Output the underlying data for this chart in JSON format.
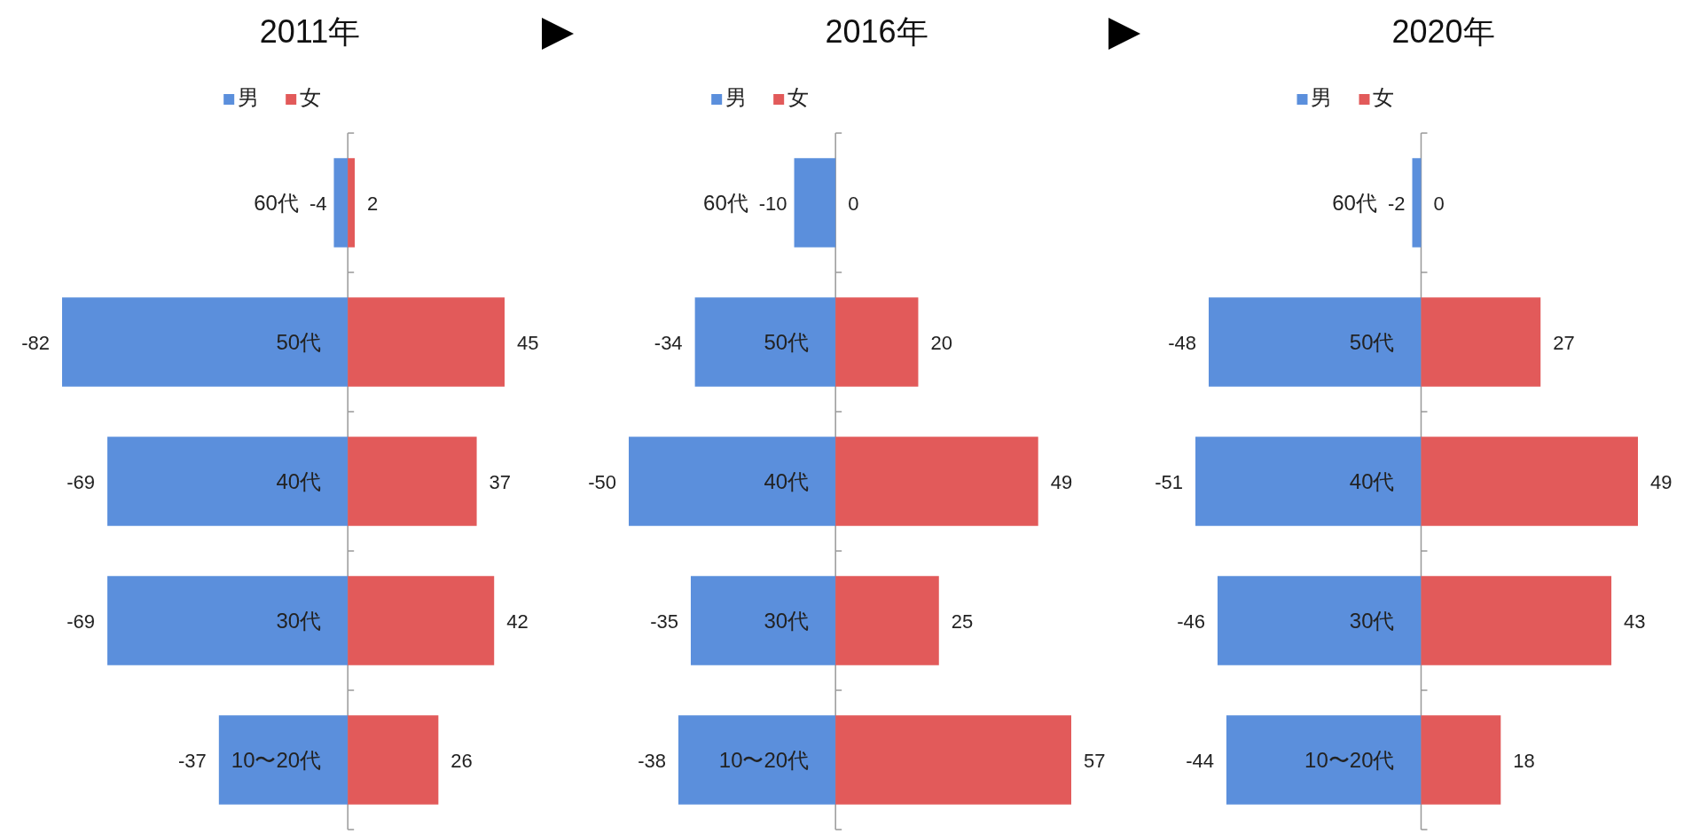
{
  "chart_data": [
    {
      "type": "bar",
      "orientation": "horizontal",
      "stacked": true,
      "title": "2011年",
      "categories": [
        "60代",
        "50代",
        "40代",
        "30代",
        "10〜20代"
      ],
      "legend": "top",
      "data_labels": true,
      "series": [
        {
          "name": "男",
          "color": "#5b8fdc",
          "values": [
            -4,
            -82,
            -69,
            -69,
            -37
          ]
        },
        {
          "name": "女",
          "color": "#e25a5a",
          "values": [
            2,
            45,
            37,
            42,
            26
          ]
        }
      ]
    },
    {
      "type": "bar",
      "orientation": "horizontal",
      "stacked": true,
      "title": "2016年",
      "categories": [
        "60代",
        "50代",
        "40代",
        "30代",
        "10〜20代"
      ],
      "legend": "top",
      "data_labels": true,
      "series": [
        {
          "name": "男",
          "color": "#5b8fdc",
          "values": [
            -10,
            -34,
            -50,
            -35,
            -38
          ]
        },
        {
          "name": "女",
          "color": "#e25a5a",
          "values": [
            0,
            20,
            49,
            25,
            57
          ]
        }
      ]
    },
    {
      "type": "bar",
      "orientation": "horizontal",
      "stacked": true,
      "title": "2020年",
      "categories": [
        "60代",
        "50代",
        "40代",
        "30代",
        "10〜20代"
      ],
      "legend": "top",
      "data_labels": true,
      "series": [
        {
          "name": "男",
          "color": "#5b8fdc",
          "values": [
            -2,
            -48,
            -51,
            -46,
            -44
          ]
        },
        {
          "name": "女",
          "color": "#e25a5a",
          "values": [
            0,
            27,
            49,
            43,
            18
          ]
        }
      ]
    }
  ]
}
